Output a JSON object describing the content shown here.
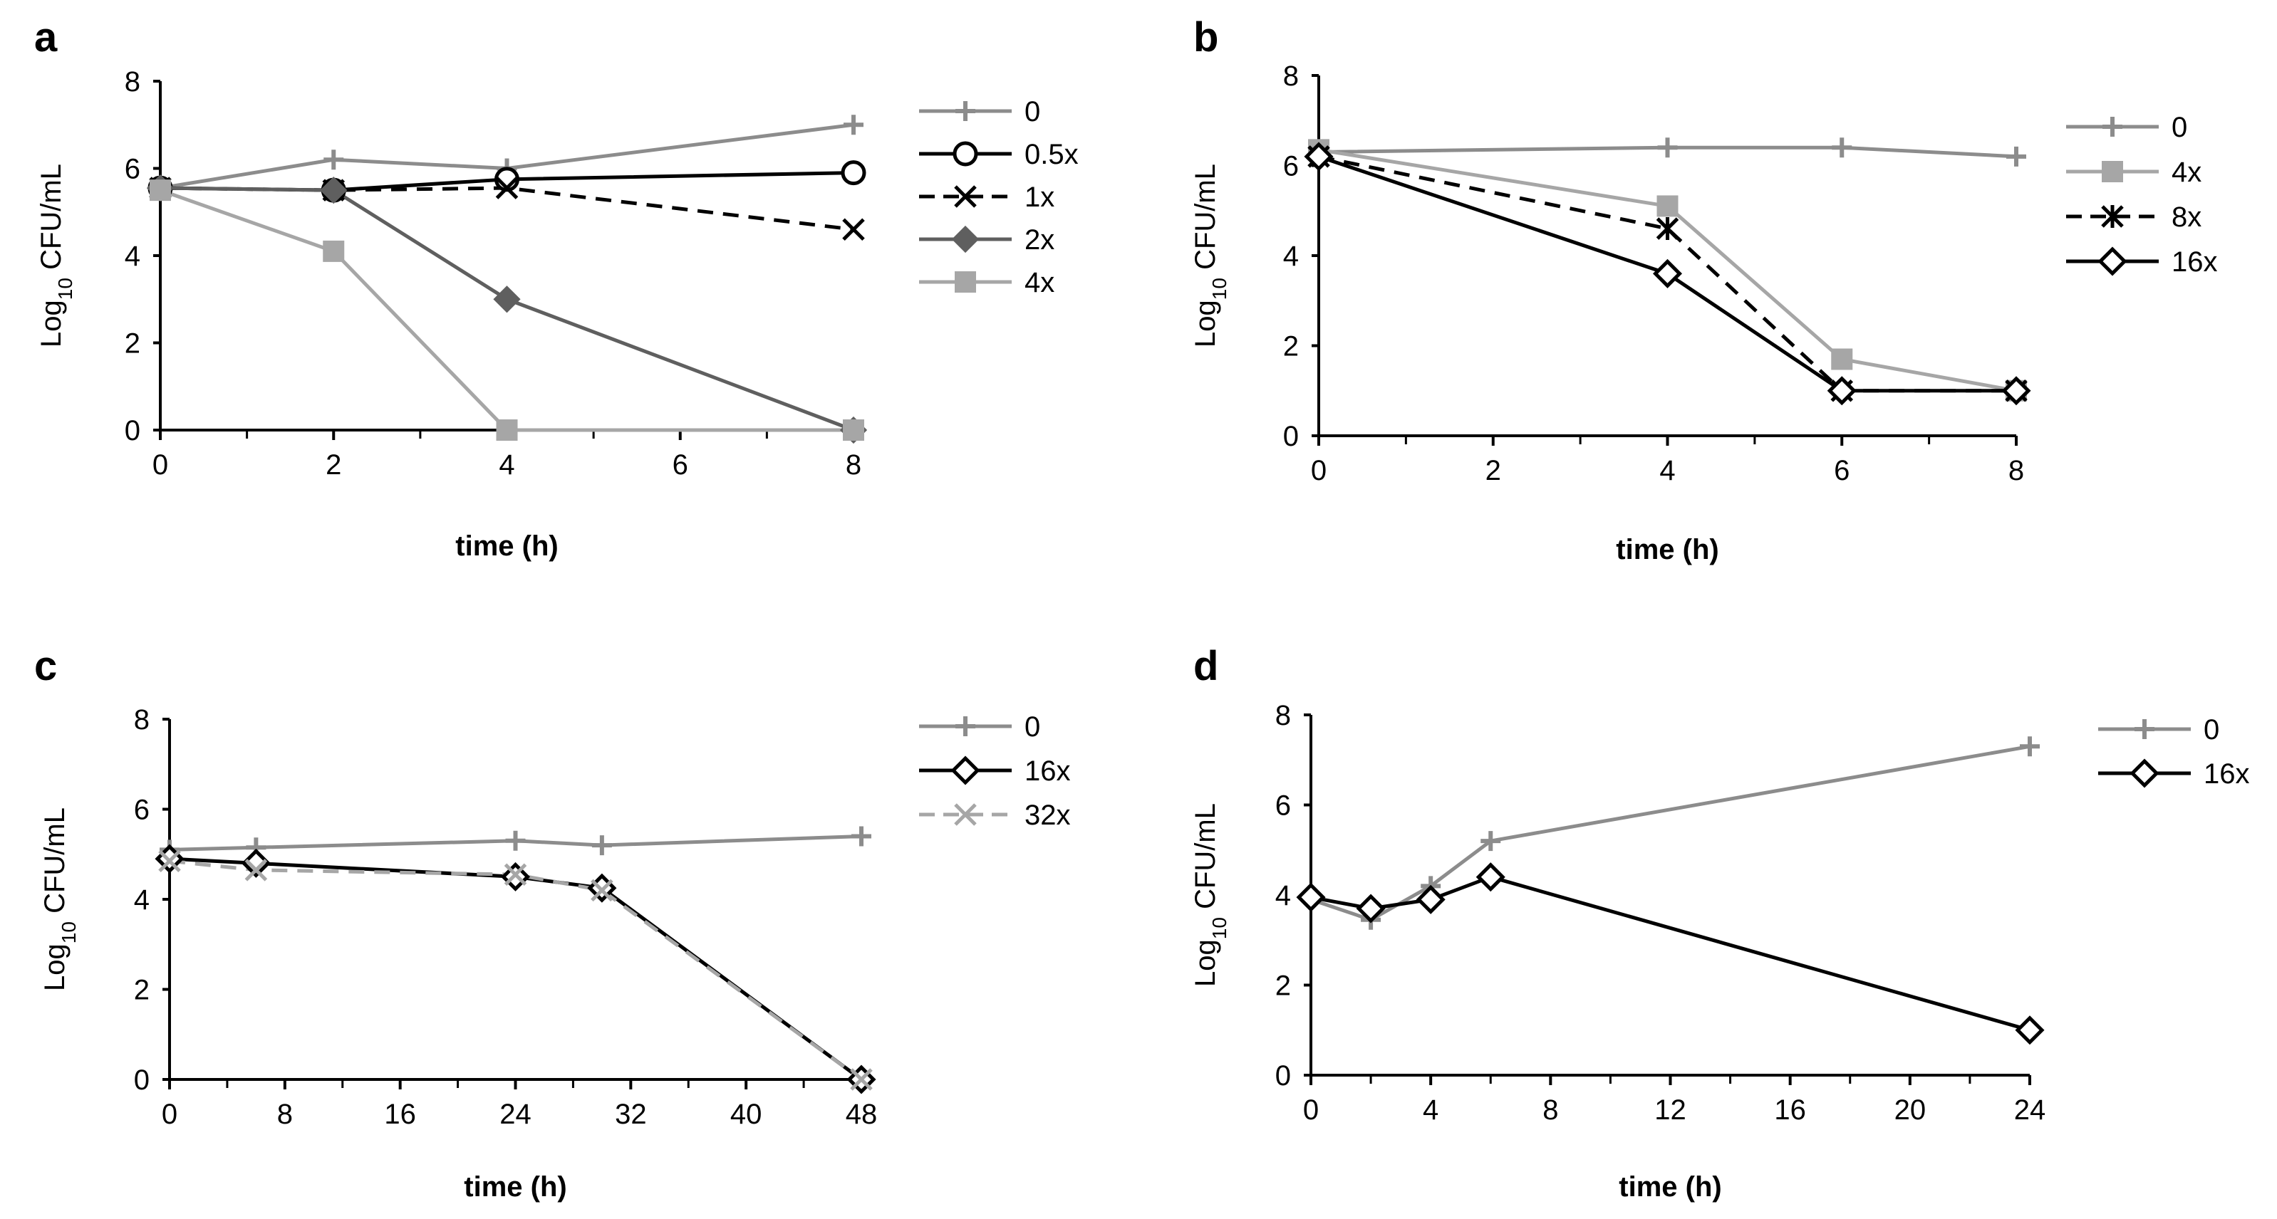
{
  "chart_data": [
    {
      "panel": "a",
      "type": "line",
      "xlabel": "time (h)",
      "ylabel_main": "Log",
      "ylabel_sub": "10",
      "ylabel_rest": " CFU/mL",
      "xlim": [
        0,
        8
      ],
      "ylim": [
        0,
        8
      ],
      "xticks": [
        0,
        2,
        4,
        6,
        8
      ],
      "yticks": [
        0,
        2,
        4,
        6,
        8
      ],
      "series": [
        {
          "name": "0",
          "x": [
            0,
            2,
            4,
            8
          ],
          "y": [
            5.55,
            6.2,
            6.0,
            7.0
          ],
          "color": "#8c8c8c",
          "marker": "plus",
          "dash": false
        },
        {
          "name": "0.5x",
          "x": [
            0,
            2,
            4,
            8
          ],
          "y": [
            5.55,
            5.5,
            5.75,
            5.9
          ],
          "color": "#000000",
          "marker": "circle",
          "dash": false
        },
        {
          "name": "1x",
          "x": [
            0,
            2,
            4,
            8
          ],
          "y": [
            5.55,
            5.5,
            5.55,
            4.6
          ],
          "color": "#000000",
          "marker": "x",
          "dash": true
        },
        {
          "name": "2x",
          "x": [
            0,
            2,
            4,
            8
          ],
          "y": [
            5.55,
            5.5,
            3.0,
            0.0
          ],
          "color": "#5f5f5f",
          "marker": "diamond-filled",
          "dash": false
        },
        {
          "name": "4x",
          "x": [
            0,
            2,
            4,
            8
          ],
          "y": [
            5.5,
            4.1,
            0.0,
            0.0
          ],
          "color": "#a6a6a6",
          "marker": "square",
          "dash": false
        }
      ]
    },
    {
      "panel": "b",
      "type": "line",
      "xlabel": "time (h)",
      "ylabel_main": "Log",
      "ylabel_sub": "10",
      "ylabel_rest": " CFU/mL",
      "xlim": [
        0,
        8
      ],
      "ylim": [
        0,
        8
      ],
      "xticks": [
        0,
        2,
        4,
        6,
        8
      ],
      "yticks": [
        0,
        2,
        4,
        6,
        8
      ],
      "series": [
        {
          "name": "0",
          "x": [
            0,
            4,
            6,
            8
          ],
          "y": [
            6.3,
            6.4,
            6.4,
            6.2
          ],
          "color": "#8c8c8c",
          "marker": "plus",
          "dash": false
        },
        {
          "name": "4x",
          "x": [
            0,
            4,
            6,
            8
          ],
          "y": [
            6.35,
            5.1,
            1.7,
            1.0
          ],
          "color": "#a6a6a6",
          "marker": "square",
          "dash": false
        },
        {
          "name": "8x",
          "x": [
            0,
            4,
            6,
            8
          ],
          "y": [
            6.2,
            4.6,
            1.0,
            1.0
          ],
          "color": "#000000",
          "marker": "star",
          "dash": true
        },
        {
          "name": "16x",
          "x": [
            0,
            4,
            6,
            8
          ],
          "y": [
            6.2,
            3.6,
            1.0,
            1.0
          ],
          "color": "#000000",
          "marker": "diamond",
          "dash": false
        }
      ]
    },
    {
      "panel": "c",
      "type": "line",
      "xlabel": "time (h)",
      "ylabel_main": "Log",
      "ylabel_sub": "10",
      "ylabel_rest": " CFU/mL",
      "xlim": [
        0,
        48
      ],
      "ylim": [
        0,
        8
      ],
      "xticks": [
        0,
        8,
        16,
        24,
        32,
        40,
        48
      ],
      "yticks": [
        0,
        2,
        4,
        6,
        8
      ],
      "series": [
        {
          "name": "0",
          "x": [
            0,
            6,
            24,
            30,
            48
          ],
          "y": [
            5.1,
            5.15,
            5.3,
            5.2,
            5.4
          ],
          "color": "#8c8c8c",
          "marker": "plus",
          "dash": false
        },
        {
          "name": "16x",
          "x": [
            0,
            6,
            24,
            30,
            48
          ],
          "y": [
            4.9,
            4.8,
            4.5,
            4.25,
            0.0
          ],
          "color": "#000000",
          "marker": "diamond",
          "dash": false
        },
        {
          "name": "32x",
          "x": [
            0,
            6,
            24,
            30,
            48
          ],
          "y": [
            4.85,
            4.65,
            4.55,
            4.2,
            0.0
          ],
          "color": "#a6a6a6",
          "marker": "x",
          "dash": true
        }
      ]
    },
    {
      "panel": "d",
      "type": "line",
      "xlabel": "time (h)",
      "ylabel_main": "Log",
      "ylabel_sub": "10",
      "ylabel_rest": " CFU/mL",
      "xlim": [
        0,
        24
      ],
      "ylim": [
        0,
        8
      ],
      "xticks": [
        0,
        4,
        8,
        12,
        16,
        20,
        24
      ],
      "yticks": [
        0,
        2,
        4,
        6,
        8
      ],
      "series": [
        {
          "name": "0",
          "x": [
            0,
            2,
            4,
            6,
            24
          ],
          "y": [
            3.9,
            3.45,
            4.2,
            5.2,
            7.3
          ],
          "color": "#8c8c8c",
          "marker": "plus",
          "dash": false
        },
        {
          "name": "16x",
          "x": [
            0,
            2,
            4,
            6,
            24
          ],
          "y": [
            3.95,
            3.7,
            3.9,
            4.4,
            1.0
          ],
          "color": "#000000",
          "marker": "diamond",
          "dash": false
        }
      ]
    }
  ]
}
